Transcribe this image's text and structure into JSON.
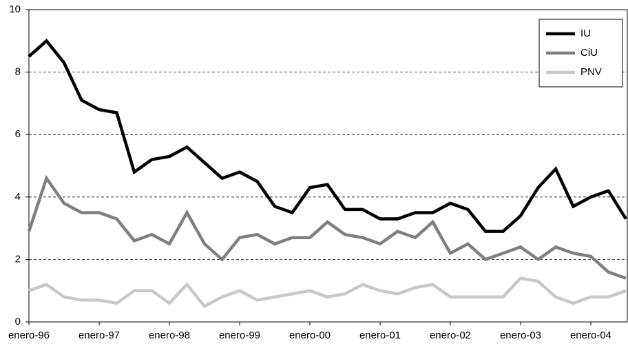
{
  "chart_data": {
    "type": "line",
    "categories": [
      "enero-96",
      null,
      null,
      null,
      "enero-97",
      null,
      null,
      null,
      "enero-98",
      null,
      null,
      null,
      "enero-99",
      null,
      null,
      null,
      "enero-00",
      null,
      null,
      null,
      "enero-01",
      null,
      null,
      null,
      "enero-02",
      null,
      null,
      null,
      "enero-03",
      null,
      null,
      null,
      "enero-04",
      null,
      null
    ],
    "series": [
      {
        "name": "IU",
        "color": "#000000",
        "values": [
          8.5,
          9.0,
          8.3,
          7.1,
          6.8,
          6.7,
          4.8,
          5.2,
          5.3,
          5.6,
          5.1,
          4.6,
          4.8,
          4.5,
          3.7,
          3.5,
          4.3,
          4.4,
          3.6,
          3.6,
          3.3,
          3.3,
          3.5,
          3.5,
          3.8,
          3.6,
          2.9,
          2.9,
          3.4,
          4.3,
          4.9,
          3.7,
          4.0,
          4.2,
          3.3
        ]
      },
      {
        "name": "CiU",
        "color": "#7f7f7f",
        "values": [
          2.9,
          4.6,
          3.8,
          3.5,
          3.5,
          3.3,
          2.6,
          2.8,
          2.5,
          3.5,
          2.5,
          2.0,
          2.7,
          2.8,
          2.5,
          2.7,
          2.7,
          3.2,
          2.8,
          2.7,
          2.5,
          2.9,
          2.7,
          3.2,
          2.2,
          2.5,
          2.0,
          2.2,
          2.4,
          2.0,
          2.4,
          2.2,
          2.1,
          1.6,
          1.4
        ]
      },
      {
        "name": "PNV",
        "color": "#c8c8c8",
        "values": [
          1.0,
          1.2,
          0.8,
          0.7,
          0.7,
          0.6,
          1.0,
          1.0,
          0.6,
          1.2,
          0.5,
          0.8,
          1.0,
          0.7,
          0.8,
          0.9,
          1.0,
          0.8,
          0.9,
          1.2,
          1.0,
          0.9,
          1.1,
          1.2,
          0.8,
          0.8,
          0.8,
          0.8,
          1.4,
          1.3,
          0.8,
          0.6,
          0.8,
          0.8,
          1.0
        ]
      }
    ],
    "ylim": [
      0,
      10
    ],
    "yticks": [
      0,
      2,
      4,
      6,
      8,
      10
    ],
    "grid": true,
    "legend": "top-right"
  }
}
